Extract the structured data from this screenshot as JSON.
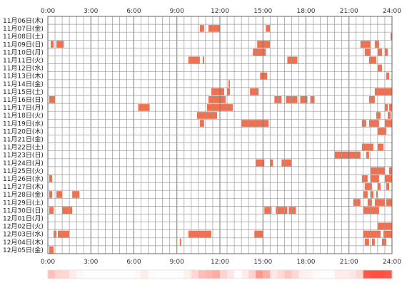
{
  "chart_data": {
    "type": "heatmap",
    "title": "",
    "xlabel": "",
    "ylabel": "",
    "x_range_hours": [
      0,
      24
    ],
    "x_tick_labels": [
      "0:00",
      "3:00",
      "6:00",
      "9:00",
      "12:00",
      "15:00",
      "18:00",
      "21:00",
      "24:00"
    ],
    "grid": true,
    "bar_color": "#f07050",
    "grid_color": "#8a8a8a",
    "days": [
      {
        "label": "11月06日(木)",
        "activity": []
      },
      {
        "label": "11月07日(金)",
        "activity": [
          [
            10.6,
            10.9
          ],
          [
            11.2,
            12.0
          ],
          [
            15.2,
            15.5
          ]
        ]
      },
      {
        "label": "11月08日(土)",
        "activity": [
          [
            23.9,
            24.0
          ]
        ]
      },
      {
        "label": "11月09日(日)",
        "activity": [
          [
            0.2,
            0.4
          ],
          [
            0.6,
            1.1
          ],
          [
            14.6,
            15.5
          ],
          [
            21.8,
            22.5
          ],
          [
            22.8,
            23.1
          ]
        ]
      },
      {
        "label": "11月10日(月)",
        "activity": [
          [
            14.3,
            15.2
          ],
          [
            22.1,
            22.5
          ],
          [
            23.0,
            23.3
          ],
          [
            23.5,
            23.7
          ]
        ]
      },
      {
        "label": "11月11日(火)",
        "activity": [
          [
            9.8,
            10.6
          ],
          [
            10.8,
            10.9
          ],
          [
            16.7,
            17.4
          ],
          [
            22.4,
            22.9
          ]
        ]
      },
      {
        "label": "11月12日(水)",
        "activity": [
          [
            23.0,
            23.3
          ]
        ]
      },
      {
        "label": "11月13日(木)",
        "activity": [
          [
            14.8,
            15.3
          ],
          [
            23.6,
            23.8
          ]
        ]
      },
      {
        "label": "11月14日(金)",
        "activity": [
          [
            12.6,
            12.7
          ]
        ]
      },
      {
        "label": "11月15日(土)",
        "activity": [
          [
            11.4,
            12.3
          ],
          [
            12.5,
            12.7
          ],
          [
            14.1,
            14.7
          ],
          [
            22.8,
            24.0
          ]
        ]
      },
      {
        "label": "11月16日(日)",
        "activity": [
          [
            0.1,
            0.5
          ],
          [
            11.2,
            12.4
          ],
          [
            15.8,
            16.3
          ],
          [
            16.6,
            17.4
          ],
          [
            17.6,
            18.1
          ],
          [
            18.3,
            18.6
          ],
          [
            22.4,
            22.8
          ]
        ]
      },
      {
        "label": "11月17日(月)",
        "activity": [
          [
            6.3,
            7.1
          ],
          [
            11.1,
            12.9
          ],
          [
            23.5,
            23.7
          ],
          [
            23.8,
            24.0
          ]
        ]
      },
      {
        "label": "11月18日(火)",
        "activity": [
          [
            10.4,
            11.8
          ],
          [
            22.9,
            23.2
          ],
          [
            23.7,
            23.9
          ]
        ]
      },
      {
        "label": "11月19日(水)",
        "activity": [
          [
            10.6,
            10.9
          ],
          [
            13.5,
            15.4
          ],
          [
            21.9,
            22.2
          ],
          [
            22.4,
            23.1
          ],
          [
            23.5,
            24.0
          ]
        ]
      },
      {
        "label": "11月20日(木)",
        "activity": [
          [
            23.0,
            23.6
          ]
        ]
      },
      {
        "label": "11月21日(金)",
        "activity": []
      },
      {
        "label": "11月22日(土)",
        "activity": [
          [
            21.9,
            22.7
          ],
          [
            23.0,
            23.4
          ]
        ]
      },
      {
        "label": "11月23日(日)",
        "activity": [
          [
            20.0,
            21.8
          ],
          [
            22.2,
            22.4
          ]
        ]
      },
      {
        "label": "11月24日(月)",
        "activity": [
          [
            14.5,
            15.1
          ],
          [
            15.5,
            15.7
          ],
          [
            16.3,
            17.0
          ]
        ]
      },
      {
        "label": "11月25日(火)",
        "activity": [
          [
            22.5,
            23.5
          ],
          [
            23.8,
            24.0
          ]
        ]
      },
      {
        "label": "11月26日(水)",
        "activity": [
          [
            0.1,
            0.3
          ],
          [
            21.9,
            22.3
          ],
          [
            22.5,
            23.1
          ],
          [
            23.5,
            24.0
          ]
        ]
      },
      {
        "label": "11月27日(木)",
        "activity": [
          [
            22.1,
            22.6
          ],
          [
            23.0,
            23.2
          ],
          [
            23.6,
            23.8
          ]
        ]
      },
      {
        "label": "11月28日(金)",
        "activity": [
          [
            0.1,
            0.3
          ],
          [
            0.6,
            1.0
          ],
          [
            1.7,
            2.2
          ],
          [
            22.0,
            22.3
          ],
          [
            22.5,
            22.7
          ],
          [
            22.9,
            23.0
          ]
        ]
      },
      {
        "label": "11月29日(土)",
        "activity": [
          [
            21.3,
            21.8
          ],
          [
            22.3,
            22.6
          ],
          [
            22.8,
            23.5
          ],
          [
            23.6,
            24.0
          ]
        ]
      },
      {
        "label": "11月30日(日)",
        "activity": [
          [
            0.1,
            0.4
          ],
          [
            1.0,
            1.7
          ],
          [
            15.1,
            15.6
          ],
          [
            15.9,
            16.7
          ],
          [
            16.8,
            17.3
          ],
          [
            22.0,
            23.1
          ]
        ]
      },
      {
        "label": "12月01日(月)",
        "activity": []
      },
      {
        "label": "12月02日(火)",
        "activity": [
          [
            23.0,
            24.0
          ]
        ]
      },
      {
        "label": "12月03日(水)",
        "activity": [
          [
            0.4,
            0.6
          ],
          [
            0.7,
            1.5
          ],
          [
            9.8,
            11.4
          ],
          [
            14.4,
            15.0
          ],
          [
            22.0,
            23.2
          ],
          [
            23.4,
            24.0
          ]
        ]
      },
      {
        "label": "12月04日(木)",
        "activity": [
          [
            9.2,
            9.3
          ],
          [
            22.1,
            22.4
          ],
          [
            22.6,
            22.8
          ],
          [
            23.3,
            23.6
          ]
        ]
      },
      {
        "label": "12月05日(金)",
        "activity": [
          [
            0.1,
            0.4
          ]
        ]
      }
    ]
  }
}
